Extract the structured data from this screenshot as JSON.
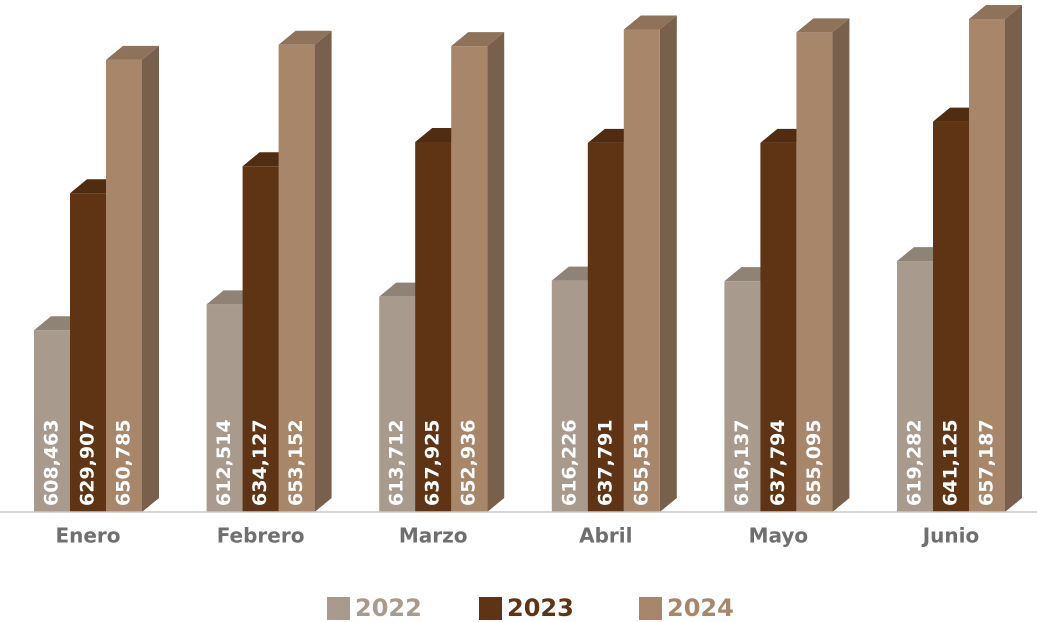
{
  "chart_data": {
    "type": "bar3d",
    "categories": [
      "Enero",
      "Febrero",
      "Marzo",
      "Abril",
      "Mayo",
      "Junio"
    ],
    "series": [
      {
        "name": "2022",
        "color": "#a89a8c",
        "values": [
          608463,
          612514,
          613712,
          616226,
          616137,
          619282
        ],
        "value_labels": [
          "608,463",
          "612,514",
          "613,712",
          "616,226",
          "616,137",
          "619,282"
        ]
      },
      {
        "name": "2023",
        "color": "#5e3414",
        "values": [
          629907,
          634127,
          637925,
          637791,
          637794,
          641125
        ],
        "value_labels": [
          "629,907",
          "634,127",
          "637,925",
          "637,791",
          "637,794",
          "641,125"
        ]
      },
      {
        "name": "2024",
        "color": "#a8866a",
        "values": [
          650785,
          653152,
          652936,
          655531,
          655095,
          657187
        ],
        "value_labels": [
          "650,785",
          "653,152",
          "652,936",
          "655,531",
          "655,095",
          "657,187"
        ]
      }
    ],
    "ylim": [
      580000,
      660000
    ],
    "legend": "bottom"
  }
}
